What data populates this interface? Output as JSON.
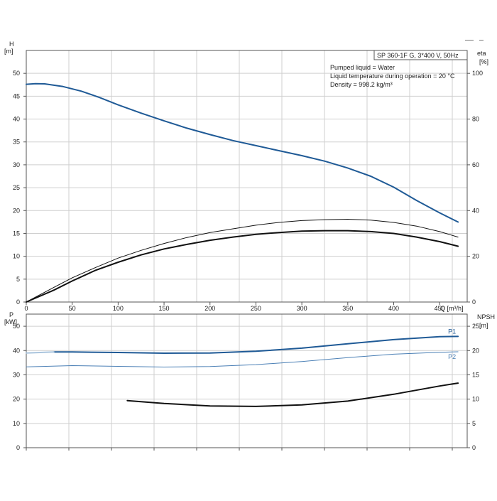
{
  "info": {
    "title": "SP 360-1F G, 3*400 V, 50Hz",
    "lines": [
      "Pumped liquid = Water",
      "Liquid temperature during operation = 20 °C",
      "Density = 998.2 kg/m³"
    ]
  },
  "colors": {
    "blue": "#1f5a96",
    "light_blue": "#4a7fb5",
    "black": "#111111",
    "grid": "#cfcfcf",
    "frame": "#555555"
  },
  "chart_data": [
    {
      "type": "line",
      "panel": "top",
      "x_axis": {
        "label": "Q [m³/h]",
        "range": [
          0,
          480
        ],
        "ticks": [
          "0",
          "50",
          "100",
          "150",
          "200",
          "250",
          "300",
          "350",
          "400",
          "450"
        ],
        "tick_values": [
          0,
          50,
          100,
          150,
          200,
          250,
          300,
          350,
          400,
          450
        ]
      },
      "y_left": {
        "label": [
          "H",
          "[m]"
        ],
        "range": [
          0,
          55
        ],
        "ticks": [
          "0",
          "5",
          "10",
          "15",
          "20",
          "25",
          "30",
          "35",
          "40",
          "45",
          "50"
        ],
        "tick_values": [
          0,
          5,
          10,
          15,
          20,
          25,
          30,
          35,
          40,
          45,
          50
        ]
      },
      "y_right": {
        "label": [
          "eta",
          "[%]"
        ],
        "range": [
          0,
          110
        ],
        "ticks": [
          "0",
          "20",
          "40",
          "60",
          "80",
          "100"
        ],
        "tick_values": [
          0,
          20,
          40,
          60,
          80,
          100
        ]
      },
      "grid": true,
      "series": [
        {
          "axis": "left",
          "color": "#1f5a96",
          "width": 2,
          "x": [
            0,
            10,
            20,
            30,
            40,
            60,
            80,
            100,
            125,
            150,
            175,
            200,
            225,
            250,
            275,
            300,
            325,
            350,
            375,
            400,
            425,
            450,
            470
          ],
          "y": [
            47.6,
            47.75,
            47.7,
            47.4,
            47.1,
            46.1,
            44.7,
            43.1,
            41.3,
            39.6,
            38.0,
            36.6,
            35.3,
            34.2,
            33.1,
            32.0,
            30.8,
            29.3,
            27.5,
            25.1,
            22.2,
            19.5,
            17.5
          ]
        },
        {
          "axis": "left",
          "color": "#111111",
          "width": 2,
          "x": [
            0,
            30,
            50,
            75,
            100,
            125,
            150,
            175,
            200,
            225,
            250,
            275,
            300,
            325,
            350,
            375,
            400,
            425,
            450,
            470
          ],
          "y": [
            0,
            2.6,
            4.6,
            6.9,
            8.7,
            10.3,
            11.6,
            12.6,
            13.5,
            14.2,
            14.8,
            15.2,
            15.5,
            15.6,
            15.6,
            15.4,
            15.0,
            14.2,
            13.2,
            12.2
          ]
        },
        {
          "axis": "left",
          "color": "#111111",
          "width": 1,
          "x": [
            0,
            30,
            50,
            75,
            100,
            125,
            150,
            175,
            200,
            225,
            250,
            275,
            300,
            325,
            350,
            375,
            400,
            425,
            450,
            470
          ],
          "y": [
            0,
            3.2,
            5.3,
            7.5,
            9.6,
            11.3,
            12.8,
            14.1,
            15.2,
            16.0,
            16.8,
            17.4,
            17.8,
            18.0,
            18.1,
            17.9,
            17.4,
            16.6,
            15.4,
            14.2
          ]
        }
      ]
    },
    {
      "type": "line",
      "panel": "bottom",
      "x_axis": {
        "range": [
          0,
          480
        ]
      },
      "y_left": {
        "label": [
          "P",
          "[kW]"
        ],
        "range": [
          0,
          55
        ],
        "ticks": [
          "0",
          "10",
          "20",
          "30",
          "40",
          "50"
        ],
        "tick_values": [
          0,
          10,
          20,
          30,
          40,
          50
        ]
      },
      "y_right": {
        "label": [
          "NPSH",
          "[m]"
        ],
        "range": [
          0,
          27.5
        ],
        "ticks": [
          "0",
          "5",
          "10",
          "15",
          "20",
          "25"
        ],
        "tick_values": [
          0,
          5,
          10,
          15,
          20,
          25
        ]
      },
      "grid": true,
      "series": [
        {
          "name": "P1",
          "axis": "left",
          "color": "#1f5a96",
          "width": 2,
          "x": [
            30,
            50,
            100,
            150,
            200,
            250,
            300,
            350,
            400,
            450,
            470
          ],
          "y": [
            39.4,
            39.4,
            39.2,
            38.9,
            39.0,
            39.7,
            41.0,
            42.8,
            44.5,
            45.7,
            45.8
          ]
        },
        {
          "axis": "left",
          "color": "#a9c4dd",
          "width": 2,
          "x": [
            0,
            30
          ],
          "y": [
            39.0,
            39.4
          ]
        },
        {
          "name": "P2",
          "axis": "left",
          "color": "#4a7fb5",
          "width": 1,
          "x": [
            0,
            50,
            100,
            150,
            200,
            250,
            300,
            350,
            400,
            450,
            470
          ],
          "y": [
            33.3,
            33.8,
            33.5,
            33.2,
            33.4,
            34.2,
            35.5,
            37.1,
            38.5,
            39.3,
            39.5
          ]
        },
        {
          "axis": "right",
          "color": "#111111",
          "width": 2,
          "x": [
            110,
            150,
            200,
            250,
            300,
            350,
            400,
            450,
            470
          ],
          "y": [
            9.7,
            9.1,
            8.6,
            8.5,
            8.8,
            9.6,
            11.0,
            12.7,
            13.3
          ]
        }
      ]
    }
  ]
}
